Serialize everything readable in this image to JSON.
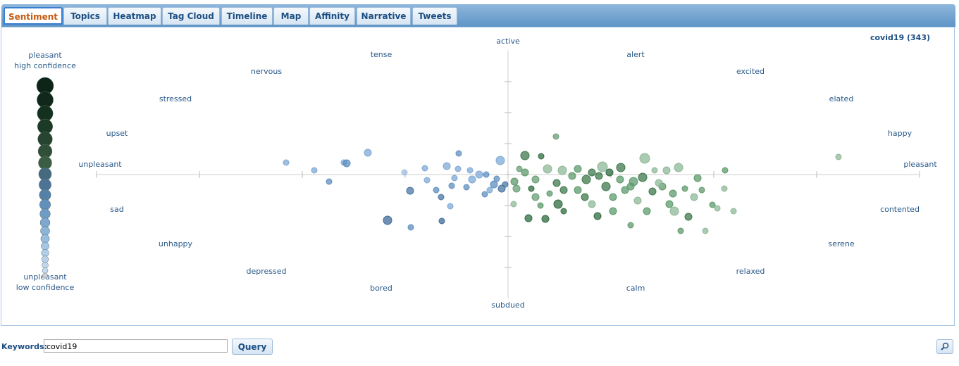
{
  "tabs": [
    "Sentiment",
    "Topics",
    "Heatmap",
    "Tag Cloud",
    "Timeline",
    "Map",
    "Affinity",
    "Narrative",
    "Tweets"
  ],
  "legend": {
    "top": [
      "pleasant",
      "high confidence"
    ],
    "bottom": [
      "unpleasant",
      "low confidence"
    ]
  },
  "chart_data": {
    "type": "scatter",
    "title": "covid19 (343)",
    "labels": [
      "active",
      "tense",
      "alert",
      "nervous",
      "excited",
      "stressed",
      "elated",
      "upset",
      "happy",
      "unpleasant",
      "pleasant",
      "sad",
      "contented",
      "unhappy",
      "serene",
      "depressed",
      "relaxed",
      "bored",
      "calm",
      "subdued"
    ],
    "xlim": [
      -584,
      584
    ],
    "ylim": [
      -176,
      176
    ],
    "xticks": [
      -584,
      -438,
      -292,
      -146,
      0,
      146,
      292,
      438,
      584
    ],
    "yticks": [
      -132,
      -88,
      -44,
      0,
      44,
      88,
      132
    ],
    "x": [
      -315,
      -275,
      -254,
      -233,
      -229,
      -199,
      -147,
      -139,
      -171,
      -138,
      -118,
      -115,
      -102,
      -95,
      -94,
      -82,
      -80,
      -87,
      -70,
      -76,
      -59,
      -54,
      -51,
      -41,
      -33,
      -26,
      -20,
      -11,
      -9,
      -16,
      -4,
      -71,
      -31,
      68,
      24,
      47,
      16,
      24,
      33,
      12,
      8,
      29,
      53,
      46,
      59,
      56,
      69,
      77,
      91,
      71,
      99,
      111,
      119,
      127,
      134,
      139,
      149,
      160,
      166,
      174,
      178,
      191,
      194,
      197,
      205,
      208,
      219,
      225,
      229,
      236,
      242,
      245,
      256,
      251,
      264,
      269,
      275,
      280,
      290,
      297,
      308,
      307,
      320,
      469,
      109,
      149,
      184,
      79,
      129,
      159,
      39,
      99,
      119,
      144,
      174,
      214,
      234,
      79,
      39,
      9
    ],
    "y": [
      17,
      6,
      -10,
      17,
      16,
      31,
      3,
      -23,
      -65,
      -75,
      9,
      -8,
      -22,
      -32,
      -66,
      -45,
      -16,
      12,
      30,
      -5,
      -18,
      6,
      -7,
      0,
      -28,
      -22,
      -14,
      20,
      -20,
      -6,
      -14,
      8,
      0,
      54,
      27,
      26,
      8,
      3,
      -20,
      -20,
      -42,
      -62,
      -63,
      -44,
      -27,
      8,
      -12,
      6,
      -2,
      -42,
      -22,
      -7,
      -42,
      -59,
      11,
      -17,
      -52,
      10,
      -22,
      -72,
      -10,
      -4,
      23,
      -52,
      -24,
      6,
      -17,
      6,
      -42,
      -52,
      10,
      -80,
      -60,
      -20,
      -32,
      -5,
      -22,
      -80,
      -43,
      -48,
      6,
      -20,
      -52,
      25,
      -32,
      -32,
      -37,
      -52,
      -2,
      -7,
      -7,
      8,
      3,
      3,
      -17,
      -12,
      -27,
      -22,
      -32,
      -10
    ],
    "sizes": [
      4,
      4,
      4,
      4,
      5,
      5,
      4,
      5,
      6,
      4,
      4,
      4,
      4,
      4,
      4,
      4,
      4,
      5,
      4,
      4,
      4,
      4,
      5,
      5,
      4,
      4,
      5,
      6,
      5,
      4,
      4,
      4,
      4,
      4,
      6,
      4,
      4,
      5,
      4,
      5,
      4,
      5,
      5,
      4,
      4,
      6,
      5,
      6,
      5,
      6,
      5,
      6,
      5,
      5,
      7,
      6,
      5,
      6,
      5,
      4,
      6,
      6,
      7,
      5,
      5,
      4,
      5,
      5,
      5,
      6,
      6,
      4,
      5,
      4,
      5,
      5,
      4,
      4,
      4,
      4,
      4,
      4,
      4,
      4,
      5,
      5,
      5,
      4,
      5,
      5,
      5,
      5,
      5,
      5,
      5,
      5,
      5,
      5,
      5,
      5
    ],
    "colors": [
      "#7fa9d6",
      "#7fa9d6",
      "#5f8fc0",
      "#7fa9d6",
      "#5f8fc0",
      "#7fa9d6",
      "#9fbfe0",
      "#4a77a3",
      "#3f6b96",
      "#5f8fc0",
      "#7fa9d6",
      "#7fa9d6",
      "#5f8fc0",
      "#4a77a3",
      "#3f6b96",
      "#7fa9d6",
      "#5f8fc0",
      "#7fa9d6",
      "#5f8fc0",
      "#7fa9d6",
      "#5f8fc0",
      "#7fa9d6",
      "#7fa9d6",
      "#7fa9d6",
      "#5f8fc0",
      "#7fa9d6",
      "#5f8fc0",
      "#7fa9d6",
      "#4a77a3",
      "#5f8fc0",
      "#4a77a3",
      "#7fa9d6",
      "#5f8fc0",
      "#6a9e77",
      "#3f7a4e",
      "#2f6b3f",
      "#6a9e77",
      "#5e9a6c",
      "#2f6b3f",
      "#6a9e77",
      "#8fb898",
      "#2f6b3f",
      "#2f6b3f",
      "#5e9a6c",
      "#5e9a6c",
      "#8fb898",
      "#3f7a4e",
      "#8fb898",
      "#5e9a6c",
      "#2f6b3f",
      "#5e9a6c",
      "#3f7a4e",
      "#8fb898",
      "#2f6b3f",
      "#8fb898",
      "#3f7a4e",
      "#5e9a6c",
      "#3f7a4e",
      "#5e9a6c",
      "#5e9a6c",
      "#5e9a6c",
      "#3f7a4e",
      "#8fb898",
      "#5e9a6c",
      "#3f7a4e",
      "#8fb898",
      "#5e9a6c",
      "#8fb898",
      "#5e9a6c",
      "#8fb898",
      "#8fb898",
      "#5e9a6c",
      "#3f7a4e",
      "#5e9a6c",
      "#8fb898",
      "#5e9a6c",
      "#5e9a6c",
      "#8fb898",
      "#5e9a6c",
      "#8fb898",
      "#5e9a6c",
      "#8fb898",
      "#8fb898",
      "#8fb898",
      "#3f7a4e",
      "#5e9a6c",
      "#8fb898",
      "#2f6b3f",
      "#3f7a4e",
      "#5e9a6c",
      "#6a9e77",
      "#5e9a6c",
      "#3f7a4e",
      "#2f6b3f",
      "#5e9a6c",
      "#8fb898",
      "#5e9a6c",
      "#3f7a4e",
      "#6a9e77",
      "#5e9a6c"
    ]
  },
  "query": {
    "label": "Keywords:",
    "value": "covid19",
    "button": "Query"
  }
}
